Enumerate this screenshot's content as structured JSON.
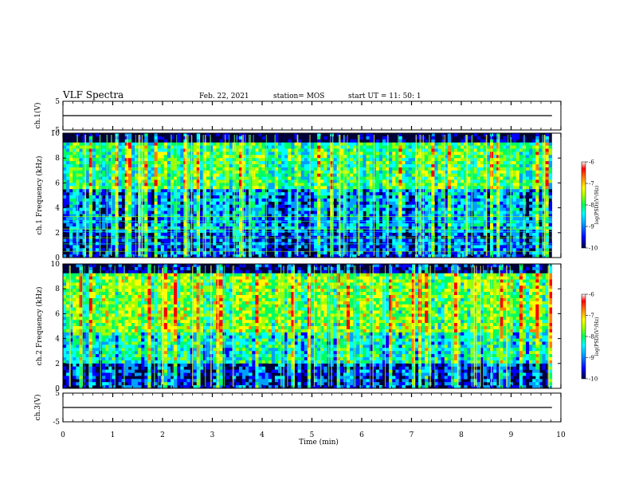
{
  "header": {
    "title": "VLF Spectra",
    "date": "Feb. 22, 2021",
    "station": "station= MOS",
    "start": "start  UT  =   11: 50: 1"
  },
  "chart_data": [
    {
      "type": "line",
      "panel": "ch1-waveform",
      "ylabel": "ch.1(V)",
      "ylim": [
        -5,
        5
      ],
      "yticks": [
        5,
        -5
      ],
      "xlim": [
        0,
        10
      ],
      "series": [
        {
          "x": [
            0,
            9.82
          ],
          "y": [
            0,
            0
          ]
        }
      ]
    },
    {
      "type": "heatmap",
      "panel": "ch1-spectrogram",
      "ylabel": "ch.1 Frequency (kHz)",
      "ylim": [
        0,
        10
      ],
      "yticks": [
        0,
        2,
        4,
        6,
        8,
        10
      ],
      "xlim": [
        0,
        10
      ],
      "data_end": 9.82,
      "colorbar": {
        "label": "log(PSD)(V²/Hz)",
        "range": [
          -10,
          -6
        ],
        "ticks": [
          -6,
          -7,
          -8,
          -9,
          -10
        ]
      }
    },
    {
      "type": "heatmap",
      "panel": "ch2-spectrogram",
      "ylabel": "ch.2 Frequency (kHz)",
      "ylim": [
        0,
        10
      ],
      "yticks": [
        0,
        2,
        4,
        6,
        8,
        10
      ],
      "xlim": [
        0,
        10
      ],
      "data_end": 9.82,
      "colorbar": {
        "label": "log(PSD)(V²/Hz)",
        "range": [
          -10,
          -6
        ],
        "ticks": [
          -6,
          -7,
          -8,
          -9,
          -10
        ]
      }
    },
    {
      "type": "line",
      "panel": "ch3-waveform",
      "ylabel": "ch.3(V)",
      "ylim": [
        -5,
        5
      ],
      "yticks": [
        5,
        -5
      ],
      "xlim": [
        0,
        10
      ],
      "series": [
        {
          "x": [
            0,
            9.82
          ],
          "y": [
            0,
            0
          ]
        }
      ]
    }
  ],
  "x_axis": {
    "label": "Time  (min)",
    "ticks": [
      0,
      1,
      2,
      3,
      4,
      5,
      6,
      7,
      8,
      9,
      10
    ]
  },
  "colors": {
    "scale": [
      "#000040",
      "#0000ff",
      "#00a0ff",
      "#00ffff",
      "#00ff60",
      "#a0ff00",
      "#ffff00",
      "#ff8000",
      "#ff0000",
      "#ffffff"
    ],
    "trace": "#000000"
  }
}
